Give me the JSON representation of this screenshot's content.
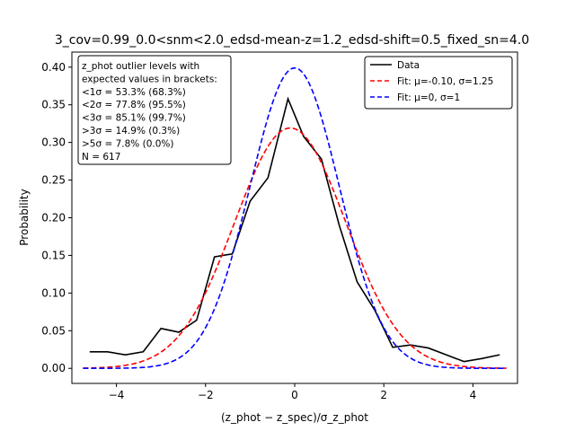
{
  "chart_data": {
    "type": "line",
    "title": "3_cov=0.99_0.0<snm<2.0_edsd-mean-z=1.2_edsd-shift=0.5_fixed_sn=4.0",
    "xlabel": "(z_phot − z_spec)/σ_z_phot",
    "ylabel": "Probability",
    "xlim": [
      -5,
      5
    ],
    "ylim": [
      -0.02,
      0.42
    ],
    "x_ticks": [
      -4,
      -2,
      0,
      2,
      4
    ],
    "x_tick_labels": [
      "−4",
      "−2",
      "0",
      "2",
      "4"
    ],
    "y_ticks": [
      0.0,
      0.05,
      0.1,
      0.15,
      0.2,
      0.25,
      0.3,
      0.35,
      0.4
    ],
    "y_tick_labels": [
      "0.00",
      "0.05",
      "0.10",
      "0.15",
      "0.20",
      "0.25",
      "0.30",
      "0.35",
      "0.40"
    ],
    "grid": false,
    "legend_position": "top-right",
    "series": [
      {
        "name": "Data",
        "color": "#000000",
        "style": "solid",
        "x": [
          -4.6,
          -4.2,
          -3.8,
          -3.4,
          -3.0,
          -2.6,
          -2.2,
          -1.8,
          -1.4,
          -1.0,
          -0.6,
          -0.15,
          0.2,
          0.6,
          1.0,
          1.4,
          1.8,
          2.2,
          2.6,
          3.0,
          3.4,
          3.8,
          4.2,
          4.6
        ],
        "y": [
          0.022,
          0.022,
          0.018,
          0.022,
          0.053,
          0.048,
          0.064,
          0.148,
          0.152,
          0.222,
          0.253,
          0.358,
          0.308,
          0.278,
          0.19,
          0.115,
          0.077,
          0.028,
          0.031,
          0.027,
          0.018,
          0.009,
          0.013,
          0.018
        ]
      },
      {
        "name": "Fit: μ=-0.10, σ=1.25",
        "color": "#ff0000",
        "style": "dashed",
        "function": "gaussian",
        "mu": -0.1,
        "sigma": 1.25
      },
      {
        "name": "Fit: μ=0, σ=1",
        "color": "#0000ff",
        "style": "dashed",
        "function": "gaussian",
        "mu": 0,
        "sigma": 1
      }
    ],
    "annotation_lines": [
      "z_phot outlier levels with",
      "expected values in brackets:",
      "<1σ = 53.3% (68.3%)",
      "<2σ = 77.8% (95.5%)",
      "<3σ = 85.1% (99.7%)",
      ">3σ = 14.9% (0.3%)",
      ">5σ = 7.8% (0.0%)",
      "N = 617"
    ]
  }
}
